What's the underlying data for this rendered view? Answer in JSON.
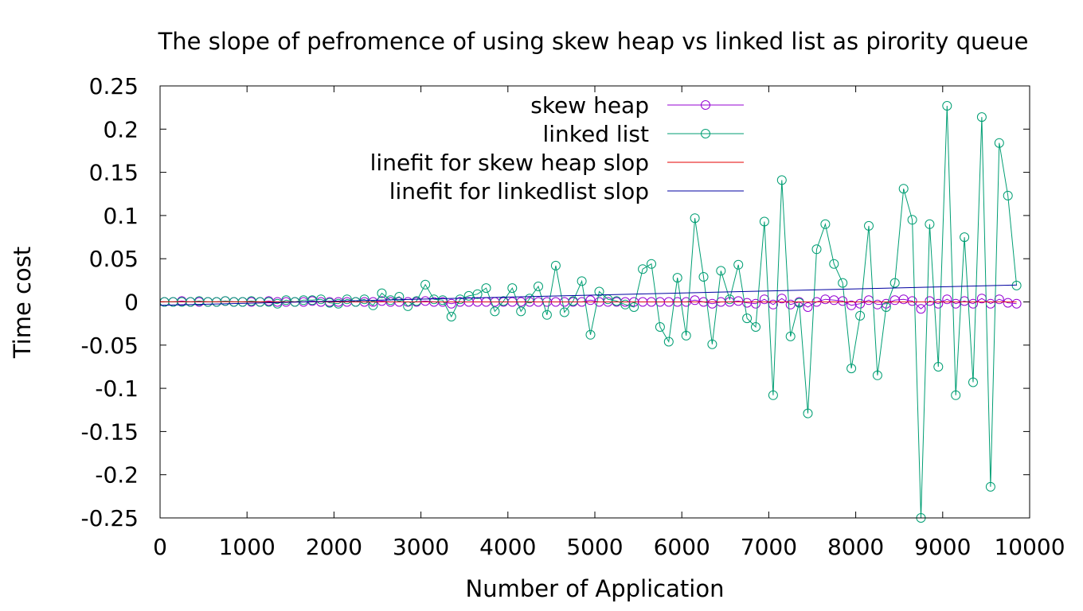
{
  "chart_data": {
    "type": "line",
    "title": "The slope of pefromence of using skew heap vs linked list as pirority queue",
    "xlabel": "Number of Application",
    "ylabel": "Time cost",
    "xlim": [
      0,
      10000
    ],
    "ylim": [
      -0.25,
      0.25
    ],
    "xticks": [
      "0",
      "1000",
      "2000",
      "3000",
      "4000",
      "5000",
      "6000",
      "7000",
      "8000",
      "9000",
      "10000"
    ],
    "yticks": [
      "0.25",
      "0.2",
      "0.15",
      "0.1",
      "0.05",
      "0",
      "-0.05",
      "-0.1",
      "-0.15",
      "-0.2",
      "-0.25"
    ],
    "grid": false,
    "legend_position": "top-right",
    "series": [
      {
        "name": "skew heap",
        "color": "#9400d3",
        "marker": "circle",
        "x": [
          50,
          150,
          250,
          350,
          450,
          550,
          650,
          750,
          850,
          950,
          1050,
          1150,
          1250,
          1350,
          1450,
          1550,
          1650,
          1750,
          1850,
          1950,
          2050,
          2150,
          2250,
          2350,
          2450,
          2550,
          2650,
          2750,
          2850,
          2950,
          3050,
          3150,
          3250,
          3350,
          3450,
          3550,
          3650,
          3750,
          3850,
          3950,
          4050,
          4150,
          4250,
          4350,
          4450,
          4550,
          4650,
          4750,
          4850,
          4950,
          5050,
          5150,
          5250,
          5350,
          5450,
          5550,
          5650,
          5750,
          5850,
          5950,
          6050,
          6150,
          6250,
          6350,
          6450,
          6550,
          6650,
          6750,
          6850,
          6950,
          7050,
          7150,
          7250,
          7350,
          7450,
          7550,
          7650,
          7750,
          7850,
          7950,
          8050,
          8150,
          8250,
          8350,
          8450,
          8550,
          8650,
          8750,
          8850,
          8950,
          9050,
          9150,
          9250,
          9350,
          9450,
          9550,
          9650,
          9750,
          9850
        ],
        "y": [
          0,
          0,
          0.001,
          0,
          0,
          0,
          0,
          0.001,
          0,
          0,
          0,
          0,
          0.001,
          0,
          0,
          0,
          0,
          0.001,
          0,
          0,
          0,
          0,
          0,
          0,
          0,
          0.001,
          0,
          0,
          0,
          0,
          0.001,
          0,
          0,
          -0.002,
          0,
          0,
          0,
          0,
          0,
          0,
          0,
          0,
          0,
          0,
          0,
          0,
          0,
          0,
          0,
          0.002,
          0,
          0,
          0,
          0,
          0,
          0,
          0,
          0,
          0,
          0,
          0,
          0.002,
          0,
          -0.002,
          0,
          0,
          0.001,
          -0.001,
          -0.002,
          0.003,
          -0.003,
          0.004,
          -0.003,
          0,
          -0.006,
          0,
          0.003,
          0.002,
          0.001,
          -0.004,
          -0.002,
          0.002,
          -0.003,
          -0.002,
          0.002,
          0.003,
          0.001,
          -0.008,
          0.001,
          -0.002,
          0.003,
          -0.002,
          0.001,
          -0.002,
          0.004,
          -0.002,
          0.003,
          -0.001,
          -0.002
        ]
      },
      {
        "name": "linked list",
        "color": "#009e73",
        "marker": "circle",
        "x": [
          50,
          150,
          250,
          350,
          450,
          550,
          650,
          750,
          850,
          950,
          1050,
          1150,
          1250,
          1350,
          1450,
          1550,
          1650,
          1750,
          1850,
          1950,
          2050,
          2150,
          2250,
          2350,
          2450,
          2550,
          2650,
          2750,
          2850,
          2950,
          3050,
          3150,
          3250,
          3350,
          3450,
          3550,
          3650,
          3750,
          3850,
          3950,
          4050,
          4150,
          4250,
          4350,
          4450,
          4550,
          4650,
          4750,
          4850,
          4950,
          5050,
          5150,
          5250,
          5350,
          5450,
          5550,
          5650,
          5750,
          5850,
          5950,
          6050,
          6150,
          6250,
          6350,
          6450,
          6550,
          6650,
          6750,
          6850,
          6950,
          7050,
          7150,
          7250,
          7350,
          7450,
          7550,
          7650,
          7750,
          7850,
          7950,
          8050,
          8150,
          8250,
          8350,
          8450,
          8550,
          8650,
          8750,
          8850,
          8950,
          9050,
          9150,
          9250,
          9350,
          9450,
          9550,
          9650,
          9750,
          9850
        ],
        "y": [
          0,
          0,
          0,
          0,
          0.001,
          0,
          0,
          0.001,
          0,
          0,
          0.001,
          0,
          0,
          -0.002,
          0.002,
          0,
          0.002,
          0.002,
          0.003,
          -0.001,
          -0.002,
          0.003,
          0,
          0.003,
          -0.004,
          0.01,
          0.002,
          0.006,
          -0.005,
          0.001,
          0.02,
          0.003,
          0.002,
          -0.017,
          0.003,
          0.007,
          0.009,
          0.016,
          -0.011,
          0.001,
          0.016,
          -0.011,
          0.004,
          0.018,
          -0.015,
          0.042,
          -0.012,
          0.001,
          0.024,
          -0.038,
          0.012,
          0.003,
          0.001,
          -0.003,
          -0.006,
          0.038,
          0.044,
          -0.029,
          -0.046,
          0.028,
          -0.039,
          0.097,
          0.029,
          -0.049,
          0.036,
          0.003,
          0.043,
          -0.019,
          -0.029,
          0.093,
          -0.108,
          0.141,
          -0.04,
          -0.001,
          -0.129,
          0.061,
          0.09,
          0.044,
          0.022,
          -0.077,
          -0.016,
          0.088,
          -0.085,
          -0.006,
          0.022,
          0.131,
          0.095,
          -0.25,
          0.09,
          -0.075,
          0.227,
          -0.108,
          0.075,
          -0.093,
          0.214,
          -0.214,
          0.184,
          0.123,
          0.019
        ]
      },
      {
        "name": "linefit for skew heap slop",
        "color": "#e60000",
        "marker": "none",
        "x": [
          0,
          9850
        ],
        "y": [
          0.0002,
          0.0001
        ]
      },
      {
        "name": "linefit for linkedlist slop",
        "color": "#0000a0",
        "marker": "none",
        "x": [
          0,
          9850
        ],
        "y": [
          -0.004,
          0.0195
        ]
      }
    ]
  }
}
